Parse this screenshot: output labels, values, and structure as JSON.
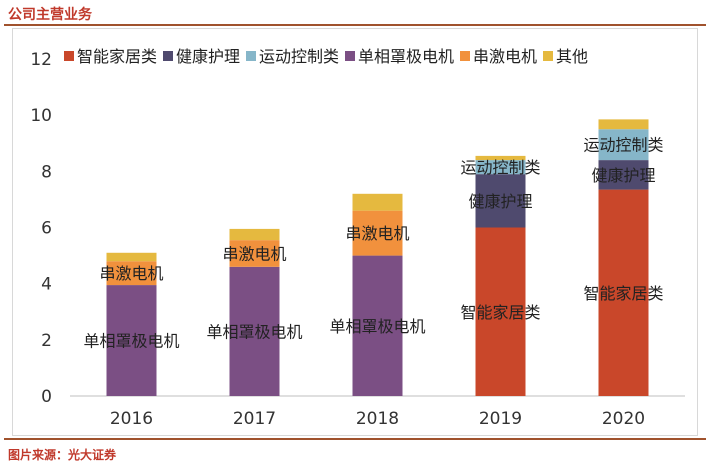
{
  "header": {
    "title": "公司主营业务"
  },
  "footer": {
    "source": "图片来源：光大证券"
  },
  "chart_data": {
    "type": "bar",
    "stacked": true,
    "categories": [
      "2016",
      "2017",
      "2018",
      "2019",
      "2020"
    ],
    "ylim": [
      0,
      12
    ],
    "yticks": [
      0,
      2,
      4,
      6,
      8,
      10,
      12
    ],
    "grid": false,
    "legend_position": "top",
    "series": [
      {
        "name": "智能家居类",
        "color": "#c9472a",
        "values": [
          0,
          0,
          0,
          6.0,
          7.35
        ]
      },
      {
        "name": "健康护理",
        "color": "#4f4a6e",
        "values": [
          0,
          0,
          0,
          1.9,
          1.05
        ]
      },
      {
        "name": "运动控制类",
        "color": "#86b6c9",
        "values": [
          0,
          0,
          0,
          0.5,
          1.1
        ]
      },
      {
        "name": "单相罩极电机",
        "color": "#7b4f84",
        "values": [
          3.95,
          4.6,
          5.0,
          0,
          0
        ]
      },
      {
        "name": "串激电机",
        "color": "#f1913d",
        "values": [
          0.85,
          0.95,
          1.6,
          0,
          0
        ]
      },
      {
        "name": "其他",
        "color": "#e5b93f",
        "values": [
          0.3,
          0.4,
          0.6,
          0.15,
          0.35
        ]
      }
    ],
    "annotations": [
      {
        "category": "2016",
        "series": "单相罩极电机",
        "text": "单相罩极电机"
      },
      {
        "category": "2016",
        "series": "串激电机",
        "text": "串激电机"
      },
      {
        "category": "2017",
        "series": "单相罩极电机",
        "text": "单相罩极电机"
      },
      {
        "category": "2017",
        "series": "串激电机",
        "text": "串激电机"
      },
      {
        "category": "2018",
        "series": "单相罩极电机",
        "text": "单相罩极电机"
      },
      {
        "category": "2018",
        "series": "串激电机",
        "text": "串激电机"
      },
      {
        "category": "2019",
        "series": "智能家居类",
        "text": "智能家居类"
      },
      {
        "category": "2019",
        "series": "健康护理",
        "text": "健康护理"
      },
      {
        "category": "2019",
        "series": "运动控制类",
        "text": "运动控制类"
      },
      {
        "category": "2020",
        "series": "智能家居类",
        "text": "智能家居类"
      },
      {
        "category": "2020",
        "series": "健康护理",
        "text": "健康护理"
      },
      {
        "category": "2020",
        "series": "运动控制类",
        "text": "运动控制类"
      }
    ]
  }
}
